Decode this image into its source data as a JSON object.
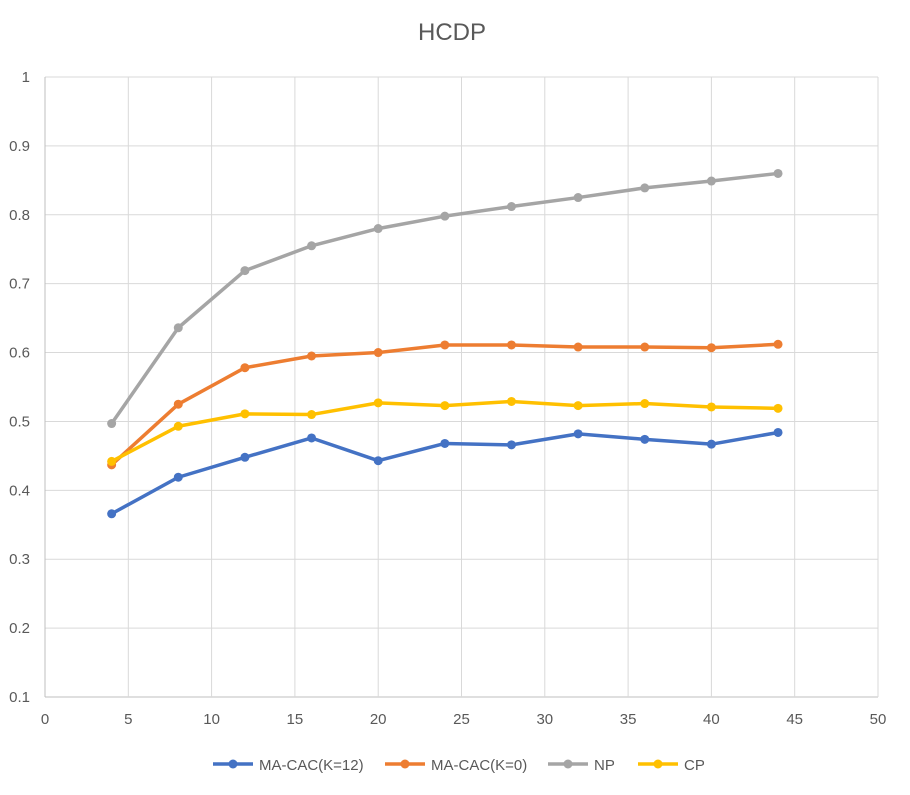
{
  "chart_data": {
    "type": "scatter",
    "title": "HCDP",
    "xlabel": "",
    "ylabel": "",
    "xlim": [
      0,
      50
    ],
    "ylim": [
      0.1,
      1
    ],
    "xticks": [
      "0",
      "5",
      "10",
      "15",
      "20",
      "25",
      "30",
      "35",
      "40",
      "45",
      "50"
    ],
    "yticks": [
      "0.1",
      "0.2",
      "0.3",
      "0.4",
      "0.5",
      "0.6",
      "0.7",
      "0.8",
      "0.9",
      "1"
    ],
    "grid": true,
    "legend_position": "bottom",
    "x": [
      4,
      8,
      12,
      16,
      20,
      24,
      28,
      32,
      36,
      40,
      44
    ],
    "series": [
      {
        "name": "MA-CAC(K=12)",
        "color": "#4472c4",
        "values": [
          0.366,
          0.419,
          0.448,
          0.476,
          0.443,
          0.468,
          0.466,
          0.482,
          0.474,
          0.467,
          0.484
        ]
      },
      {
        "name": "MA-CAC(K=0)",
        "color": "#ed7d31",
        "values": [
          0.437,
          0.525,
          0.578,
          0.595,
          0.6,
          0.611,
          0.611,
          0.608,
          0.608,
          0.607,
          0.612
        ]
      },
      {
        "name": "NP",
        "color": "#a5a5a5",
        "values": [
          0.497,
          0.636,
          0.719,
          0.755,
          0.78,
          0.798,
          0.812,
          0.825,
          0.839,
          0.849,
          0.86
        ]
      },
      {
        "name": "CP",
        "color": "#ffc000",
        "values": [
          0.442,
          0.493,
          0.511,
          0.51,
          0.527,
          0.523,
          0.529,
          0.523,
          0.526,
          0.521,
          0.519
        ]
      }
    ]
  }
}
